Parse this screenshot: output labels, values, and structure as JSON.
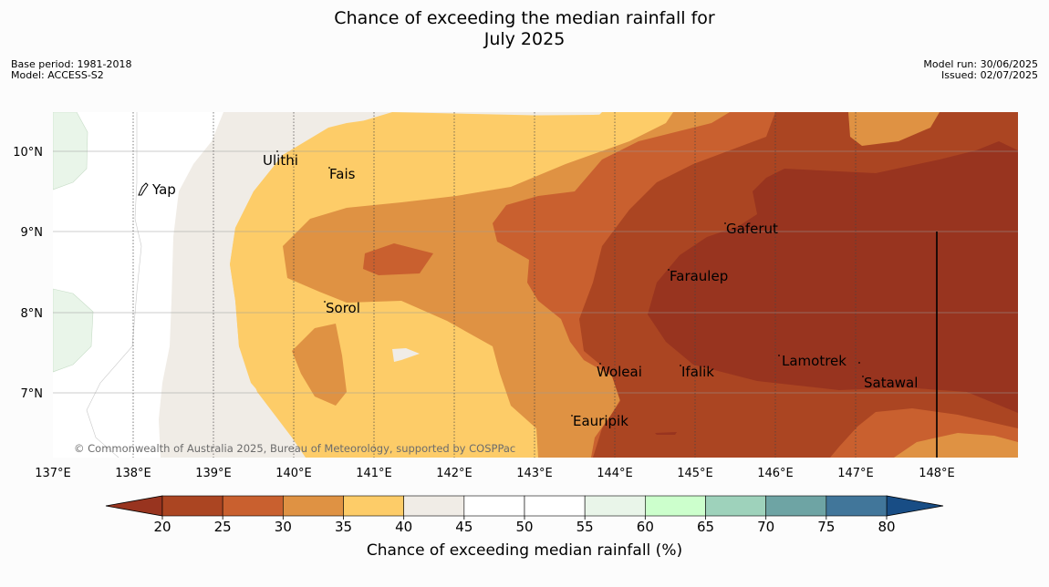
{
  "title": {
    "line1": "Chance of exceeding the median rainfall for",
    "line2": "July 2025"
  },
  "meta_left": {
    "base_period": "Base period: 1981-2018",
    "model": "Model: ACCESS-S2"
  },
  "meta_right": {
    "model_run": "Model run: 30/06/2025",
    "issued": "Issued: 02/07/2025"
  },
  "attribution": "© Commonwealth of Australia 2025, Bureau of Meteorology, supported by COSPPac",
  "latitudes": [
    "10°N",
    "9°N",
    "8°N",
    "7°N"
  ],
  "longitudes": [
    "137°E",
    "138°E",
    "139°E",
    "140°E",
    "141°E",
    "142°E",
    "143°E",
    "144°E",
    "145°E",
    "146°E",
    "147°E",
    "148°E"
  ],
  "places": [
    "Ulithi",
    "Fais",
    "Yap",
    "Gaferut",
    "Faraulep",
    "Sorol",
    "Lamotrek",
    "Woleai",
    "Ifalik",
    "Satawal",
    "Eauripik"
  ],
  "colorbar": {
    "ticks": [
      "20",
      "25",
      "30",
      "35",
      "40",
      "45",
      "50",
      "55",
      "60",
      "65",
      "70",
      "75",
      "80"
    ],
    "colors": [
      "#ab4522",
      "#c9602f",
      "#df9243",
      "#fdcc68",
      "#f0ece6",
      "#ffffff",
      "#ffffff",
      "#e9f5e9",
      "#ccffcc",
      "#9ed2bb",
      "#6ea4a4",
      "#41769a"
    ],
    "under_color": "#98341f",
    "over_color": "#184d85",
    "label": "Chance of exceeding median rainfall (%)"
  }
}
